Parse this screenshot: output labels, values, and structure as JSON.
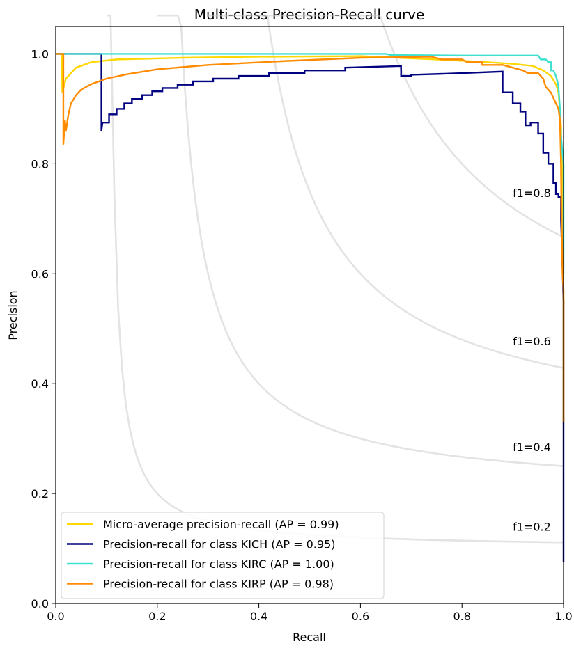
{
  "chart_data": {
    "type": "line",
    "title": "Multi-class Precision-Recall curve",
    "xlabel": "Recall",
    "ylabel": "Precision",
    "xlim": [
      0.0,
      1.0
    ],
    "ylim": [
      0.0,
      1.05
    ],
    "x_ticks": [
      "0.0",
      "0.2",
      "0.4",
      "0.6",
      "0.8",
      "1.0"
    ],
    "y_ticks": [
      "0.0",
      "0.2",
      "0.4",
      "0.6",
      "0.8",
      "1.0"
    ],
    "grid": false,
    "legend_position": "lower-left",
    "iso_f1": [
      {
        "f1": 0.2,
        "label": "f1=0.2"
      },
      {
        "f1": 0.4,
        "label": "f1=0.4"
      },
      {
        "f1": 0.6,
        "label": "f1=0.6"
      },
      {
        "f1": 0.8,
        "label": "f1=0.8"
      }
    ],
    "series": [
      {
        "name": "Micro-average precision-recall (AP = 0.99)",
        "color": "#ffd700",
        "points": [
          [
            0.0,
            1.0
          ],
          [
            0.012,
            1.0
          ],
          [
            0.013,
            0.93
          ],
          [
            0.02,
            0.955
          ],
          [
            0.04,
            0.975
          ],
          [
            0.07,
            0.985
          ],
          [
            0.12,
            0.99
          ],
          [
            0.25,
            0.993
          ],
          [
            0.4,
            0.995
          ],
          [
            0.6,
            0.996
          ],
          [
            0.75,
            0.99
          ],
          [
            0.85,
            0.985
          ],
          [
            0.9,
            0.982
          ],
          [
            0.94,
            0.978
          ],
          [
            0.96,
            0.97
          ],
          [
            0.975,
            0.96
          ],
          [
            0.985,
            0.945
          ],
          [
            0.99,
            0.93
          ],
          [
            0.995,
            0.87
          ],
          [
            0.998,
            0.75
          ],
          [
            1.0,
            0.55
          ],
          [
            1.0,
            0.33
          ]
        ]
      },
      {
        "name": "Precision-recall for class KICH (AP = 0.95)",
        "color": "#000080",
        "points": [
          [
            0.0,
            1.0
          ],
          [
            0.09,
            1.0
          ],
          [
            0.09,
            0.86
          ],
          [
            0.092,
            0.875
          ],
          [
            0.105,
            0.875
          ],
          [
            0.105,
            0.89
          ],
          [
            0.12,
            0.89
          ],
          [
            0.12,
            0.9
          ],
          [
            0.135,
            0.9
          ],
          [
            0.135,
            0.91
          ],
          [
            0.15,
            0.91
          ],
          [
            0.15,
            0.918
          ],
          [
            0.17,
            0.918
          ],
          [
            0.17,
            0.925
          ],
          [
            0.19,
            0.925
          ],
          [
            0.19,
            0.932
          ],
          [
            0.21,
            0.932
          ],
          [
            0.21,
            0.938
          ],
          [
            0.24,
            0.938
          ],
          [
            0.24,
            0.944
          ],
          [
            0.27,
            0.944
          ],
          [
            0.27,
            0.95
          ],
          [
            0.31,
            0.95
          ],
          [
            0.31,
            0.955
          ],
          [
            0.36,
            0.955
          ],
          [
            0.36,
            0.96
          ],
          [
            0.42,
            0.96
          ],
          [
            0.42,
            0.965
          ],
          [
            0.49,
            0.965
          ],
          [
            0.49,
            0.97
          ],
          [
            0.57,
            0.97
          ],
          [
            0.57,
            0.975
          ],
          [
            0.68,
            0.978
          ],
          [
            0.68,
            0.96
          ],
          [
            0.7,
            0.96
          ],
          [
            0.7,
            0.962
          ],
          [
            0.8,
            0.965
          ],
          [
            0.88,
            0.968
          ],
          [
            0.88,
            0.93
          ],
          [
            0.9,
            0.93
          ],
          [
            0.9,
            0.91
          ],
          [
            0.915,
            0.91
          ],
          [
            0.915,
            0.895
          ],
          [
            0.925,
            0.895
          ],
          [
            0.925,
            0.87
          ],
          [
            0.935,
            0.87
          ],
          [
            0.935,
            0.875
          ],
          [
            0.95,
            0.875
          ],
          [
            0.95,
            0.855
          ],
          [
            0.96,
            0.855
          ],
          [
            0.96,
            0.82
          ],
          [
            0.97,
            0.82
          ],
          [
            0.97,
            0.8
          ],
          [
            0.98,
            0.8
          ],
          [
            0.98,
            0.765
          ],
          [
            0.985,
            0.765
          ],
          [
            0.985,
            0.745
          ],
          [
            0.99,
            0.745
          ],
          [
            0.99,
            0.74
          ],
          [
            0.995,
            0.74
          ],
          [
            0.995,
            0.7
          ],
          [
            1.0,
            0.55
          ],
          [
            1.0,
            0.32
          ],
          [
            1.0,
            0.075
          ]
        ]
      },
      {
        "name": "Precision-recall for class KIRC (AP = 1.00)",
        "color": "#40e0d0",
        "points": [
          [
            0.0,
            1.0
          ],
          [
            0.65,
            1.0
          ],
          [
            0.66,
            0.998
          ],
          [
            0.8,
            0.997
          ],
          [
            0.95,
            0.997
          ],
          [
            0.955,
            0.99
          ],
          [
            0.965,
            0.99
          ],
          [
            0.97,
            0.985
          ],
          [
            0.975,
            0.985
          ],
          [
            0.975,
            0.97
          ],
          [
            0.98,
            0.97
          ],
          [
            0.985,
            0.96
          ],
          [
            0.988,
            0.95
          ],
          [
            0.99,
            0.94
          ],
          [
            0.993,
            0.9
          ],
          [
            0.995,
            0.85
          ],
          [
            0.997,
            0.83
          ],
          [
            1.0,
            0.8
          ],
          [
            1.0,
            0.6
          ]
        ]
      },
      {
        "name": "Precision-recall for class KIRP (AP = 0.98)",
        "color": "#ff8c00",
        "points": [
          [
            0.0,
            1.0
          ],
          [
            0.015,
            1.0
          ],
          [
            0.015,
            0.835
          ],
          [
            0.018,
            0.88
          ],
          [
            0.02,
            0.86
          ],
          [
            0.025,
            0.89
          ],
          [
            0.03,
            0.91
          ],
          [
            0.04,
            0.925
          ],
          [
            0.05,
            0.935
          ],
          [
            0.07,
            0.945
          ],
          [
            0.1,
            0.955
          ],
          [
            0.14,
            0.963
          ],
          [
            0.2,
            0.972
          ],
          [
            0.3,
            0.98
          ],
          [
            0.45,
            0.987
          ],
          [
            0.6,
            0.993
          ],
          [
            0.74,
            0.995
          ],
          [
            0.76,
            0.99
          ],
          [
            0.8,
            0.99
          ],
          [
            0.81,
            0.985
          ],
          [
            0.84,
            0.985
          ],
          [
            0.84,
            0.98
          ],
          [
            0.88,
            0.98
          ],
          [
            0.9,
            0.975
          ],
          [
            0.92,
            0.97
          ],
          [
            0.93,
            0.965
          ],
          [
            0.95,
            0.965
          ],
          [
            0.96,
            0.955
          ],
          [
            0.965,
            0.94
          ],
          [
            0.975,
            0.93
          ],
          [
            0.98,
            0.92
          ],
          [
            0.985,
            0.91
          ],
          [
            0.99,
            0.9
          ],
          [
            0.993,
            0.88
          ],
          [
            0.995,
            0.8
          ],
          [
            0.996,
            0.7
          ],
          [
            0.997,
            0.66
          ],
          [
            0.998,
            0.6
          ],
          [
            1.0,
            0.57
          ],
          [
            1.0,
            0.33
          ]
        ]
      }
    ]
  }
}
